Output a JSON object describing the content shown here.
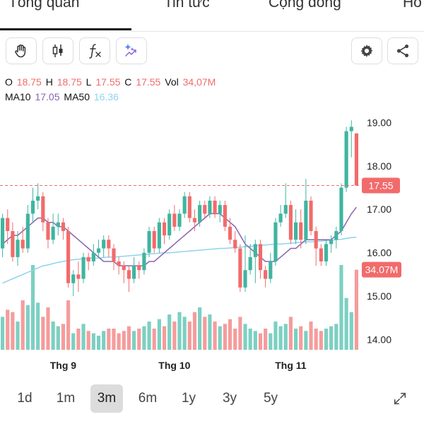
{
  "tabs": [
    {
      "label": "Tổng quan"
    },
    {
      "label": "Tin tức"
    },
    {
      "label": "Cộng đồng"
    },
    {
      "label": "Ho"
    }
  ],
  "toolbar": {
    "icons": [
      "hand-icon",
      "candlestick-icon",
      "function-icon",
      "sparkle-chart-icon",
      "gear-icon",
      "share-icon"
    ],
    "fx_label": "fx"
  },
  "legend": {
    "o_label": "O",
    "o_value": "18.75",
    "h_label": "H",
    "h_value": "18.75",
    "l_label": "L",
    "l_value": "17.55",
    "c_label": "C",
    "c_value": "17.55",
    "vol_label": "Vol",
    "vol_value": "34,07M",
    "ma10_label": "MA10",
    "ma10_value": "17.05",
    "ma50_label": "MA50",
    "ma50_value": "16.36"
  },
  "colors": {
    "up": "#3fb5a0",
    "down": "#f26b6b",
    "vol_up": "#7cd0c2",
    "vol_down": "#f59c9c",
    "ma10": "#8a63b0",
    "ma50": "#8fd3ee",
    "price_tag": "#f26b6b"
  },
  "chart_data": {
    "type": "candlestick",
    "y_ticks": [
      "19.00",
      "18.00",
      "17.00",
      "16.00",
      "15.00",
      "14.00"
    ],
    "y_tick_values": [
      19,
      18,
      17,
      16,
      15,
      14
    ],
    "ylim": [
      13.0,
      19.25
    ],
    "x_labels": [
      {
        "label": "Thg 9",
        "index": 12
      },
      {
        "label": "Thg 10",
        "index": 34
      },
      {
        "label": "Thg 11",
        "index": 57
      }
    ],
    "last_price_label": "17.55",
    "last_price": 17.55,
    "last_volume_label": "34.07M",
    "volume_max": 36,
    "candles": [
      [
        16.1,
        16.8,
        16.9,
        15.9,
        14
      ],
      [
        16.8,
        16.5,
        17.0,
        16.2,
        17
      ],
      [
        16.5,
        15.9,
        16.7,
        15.8,
        16
      ],
      [
        15.9,
        16.3,
        16.5,
        15.7,
        12
      ],
      [
        16.3,
        16.1,
        16.6,
        16.0,
        21
      ],
      [
        16.1,
        16.9,
        17.1,
        16.0,
        19
      ],
      [
        16.9,
        17.2,
        17.5,
        16.7,
        36
      ],
      [
        17.2,
        17.3,
        17.6,
        17.0,
        20
      ],
      [
        17.3,
        16.7,
        17.4,
        16.5,
        14
      ],
      [
        16.7,
        16.3,
        16.8,
        16.1,
        18
      ],
      [
        16.3,
        16.6,
        16.9,
        16.2,
        12
      ],
      [
        16.6,
        16.7,
        16.9,
        16.4,
        10
      ],
      [
        16.7,
        16.5,
        16.8,
        16.3,
        11
      ],
      [
        16.5,
        15.3,
        16.6,
        15.2,
        21
      ],
      [
        15.3,
        15.5,
        15.6,
        15.0,
        7
      ],
      [
        15.5,
        15.4,
        15.8,
        15.1,
        9
      ],
      [
        15.4,
        15.9,
        16.0,
        15.3,
        11
      ],
      [
        15.9,
        15.8,
        16.0,
        15.6,
        8
      ],
      [
        15.8,
        16.0,
        16.2,
        15.7,
        7
      ],
      [
        16.0,
        16.1,
        16.3,
        15.9,
        6
      ],
      [
        16.1,
        16.3,
        16.4,
        15.9,
        8
      ],
      [
        16.3,
        16.1,
        16.4,
        15.9,
        9
      ],
      [
        16.1,
        15.8,
        16.2,
        15.6,
        9
      ],
      [
        15.8,
        15.7,
        15.9,
        15.5,
        7
      ],
      [
        15.7,
        15.6,
        15.8,
        15.3,
        8
      ],
      [
        15.6,
        15.4,
        15.7,
        15.1,
        10
      ],
      [
        15.4,
        15.7,
        15.9,
        15.3,
        8
      ],
      [
        15.7,
        15.6,
        15.8,
        15.4,
        9
      ],
      [
        15.6,
        16.0,
        16.1,
        15.5,
        10
      ],
      [
        16.0,
        16.5,
        16.6,
        15.9,
        12
      ],
      [
        16.5,
        16.1,
        16.6,
        16.0,
        9
      ],
      [
        16.1,
        16.7,
        16.8,
        16.0,
        13
      ],
      [
        16.7,
        16.4,
        16.8,
        16.2,
        10
      ],
      [
        16.4,
        16.9,
        17.0,
        16.3,
        15
      ],
      [
        16.9,
        16.6,
        17.1,
        16.5,
        12
      ],
      [
        16.6,
        16.9,
        17.0,
        16.5,
        16
      ],
      [
        16.9,
        17.3,
        17.4,
        16.8,
        14
      ],
      [
        17.3,
        16.8,
        17.4,
        16.7,
        12
      ],
      [
        16.8,
        16.7,
        17.0,
        16.5,
        16
      ],
      [
        16.7,
        17.1,
        17.2,
        16.6,
        18
      ],
      [
        17.1,
        16.9,
        17.2,
        16.8,
        14
      ],
      [
        16.9,
        17.2,
        17.3,
        16.8,
        15
      ],
      [
        17.2,
        16.9,
        17.3,
        16.8,
        12
      ],
      [
        16.9,
        17.1,
        17.2,
        16.7,
        10
      ],
      [
        17.1,
        16.6,
        17.2,
        16.5,
        11
      ],
      [
        16.6,
        16.3,
        16.8,
        16.2,
        13
      ],
      [
        16.3,
        16.1,
        16.5,
        16.0,
        9
      ],
      [
        16.1,
        15.2,
        16.2,
        15.1,
        14
      ],
      [
        15.2,
        15.6,
        16.4,
        15.1,
        11
      ],
      [
        15.6,
        15.9,
        16.2,
        15.5,
        9
      ],
      [
        15.9,
        16.2,
        16.3,
        15.3,
        8
      ],
      [
        16.2,
        15.6,
        16.3,
        15.4,
        7
      ],
      [
        15.6,
        15.4,
        15.7,
        15.2,
        9
      ],
      [
        15.4,
        15.8,
        16.0,
        15.3,
        7
      ],
      [
        15.8,
        16.7,
        16.8,
        15.7,
        12
      ],
      [
        16.7,
        16.9,
        17.1,
        16.6,
        10
      ],
      [
        16.9,
        17.1,
        17.6,
        16.8,
        11
      ],
      [
        17.1,
        16.3,
        17.2,
        16.2,
        14
      ],
      [
        16.3,
        16.7,
        17.0,
        16.2,
        9
      ],
      [
        16.7,
        16.3,
        17.0,
        16.1,
        10
      ],
      [
        16.3,
        17.2,
        17.7,
        16.2,
        8
      ],
      [
        17.2,
        16.5,
        17.3,
        16.4,
        12
      ],
      [
        16.5,
        16.1,
        16.6,
        15.7,
        9
      ],
      [
        16.1,
        15.8,
        16.2,
        15.7,
        8
      ],
      [
        15.8,
        16.2,
        16.3,
        15.7,
        9
      ],
      [
        16.2,
        16.3,
        16.4,
        16.0,
        10
      ],
      [
        16.3,
        16.5,
        16.6,
        16.1,
        11
      ],
      [
        16.5,
        17.5,
        17.6,
        16.4,
        36
      ],
      [
        17.5,
        18.8,
        18.9,
        17.4,
        22
      ],
      [
        18.8,
        18.9,
        19.05,
        18.2,
        16
      ],
      [
        18.75,
        17.55,
        18.75,
        17.55,
        34
      ]
    ],
    "ma10": [
      16.2,
      16.3,
      16.4,
      16.4,
      16.5,
      16.6,
      16.7,
      16.8,
      16.8,
      16.7,
      16.7,
      16.6,
      16.6,
      16.5,
      16.4,
      16.3,
      16.2,
      16.1,
      16.0,
      15.9,
      15.8,
      15.8,
      15.8,
      15.7,
      15.7,
      15.7,
      15.7,
      15.7,
      15.7,
      15.8,
      15.8,
      15.9,
      16.0,
      16.1,
      16.2,
      16.3,
      16.4,
      16.5,
      16.6,
      16.7,
      16.8,
      16.9,
      16.9,
      16.9,
      16.8,
      16.7,
      16.6,
      16.4,
      16.2,
      16.1,
      16.0,
      15.9,
      15.8,
      15.8,
      15.8,
      15.9,
      16.0,
      16.1,
      16.1,
      16.2,
      16.3,
      16.3,
      16.3,
      16.3,
      16.3,
      16.3,
      16.4,
      16.5,
      16.7,
      16.9,
      17.05
    ],
    "ma50": [
      15.3,
      15.35,
      15.4,
      15.45,
      15.5,
      15.55,
      15.6,
      15.65,
      15.7,
      15.72,
      15.75,
      15.78,
      15.8,
      15.82,
      15.84,
      15.85,
      15.86,
      15.87,
      15.88,
      15.88,
      15.89,
      15.9,
      15.9,
      15.91,
      15.92,
      15.93,
      15.94,
      15.95,
      15.96,
      15.97,
      15.98,
      15.99,
      16.0,
      16.0,
      16.01,
      16.02,
      16.03,
      16.04,
      16.05,
      16.06,
      16.07,
      16.08,
      16.09,
      16.1,
      16.1,
      16.11,
      16.12,
      16.13,
      16.14,
      16.15,
      16.16,
      16.17,
      16.18,
      16.19,
      16.2,
      16.2,
      16.21,
      16.22,
      16.23,
      16.24,
      16.25,
      16.25,
      16.26,
      16.27,
      16.28,
      16.29,
      16.3,
      16.31,
      16.33,
      16.35,
      16.36
    ]
  },
  "ranges": [
    {
      "label": "1d"
    },
    {
      "label": "1m"
    },
    {
      "label": "3m"
    },
    {
      "label": "6m"
    },
    {
      "label": "1y"
    },
    {
      "label": "3y"
    },
    {
      "label": "5y"
    }
  ],
  "active_range": "3m"
}
